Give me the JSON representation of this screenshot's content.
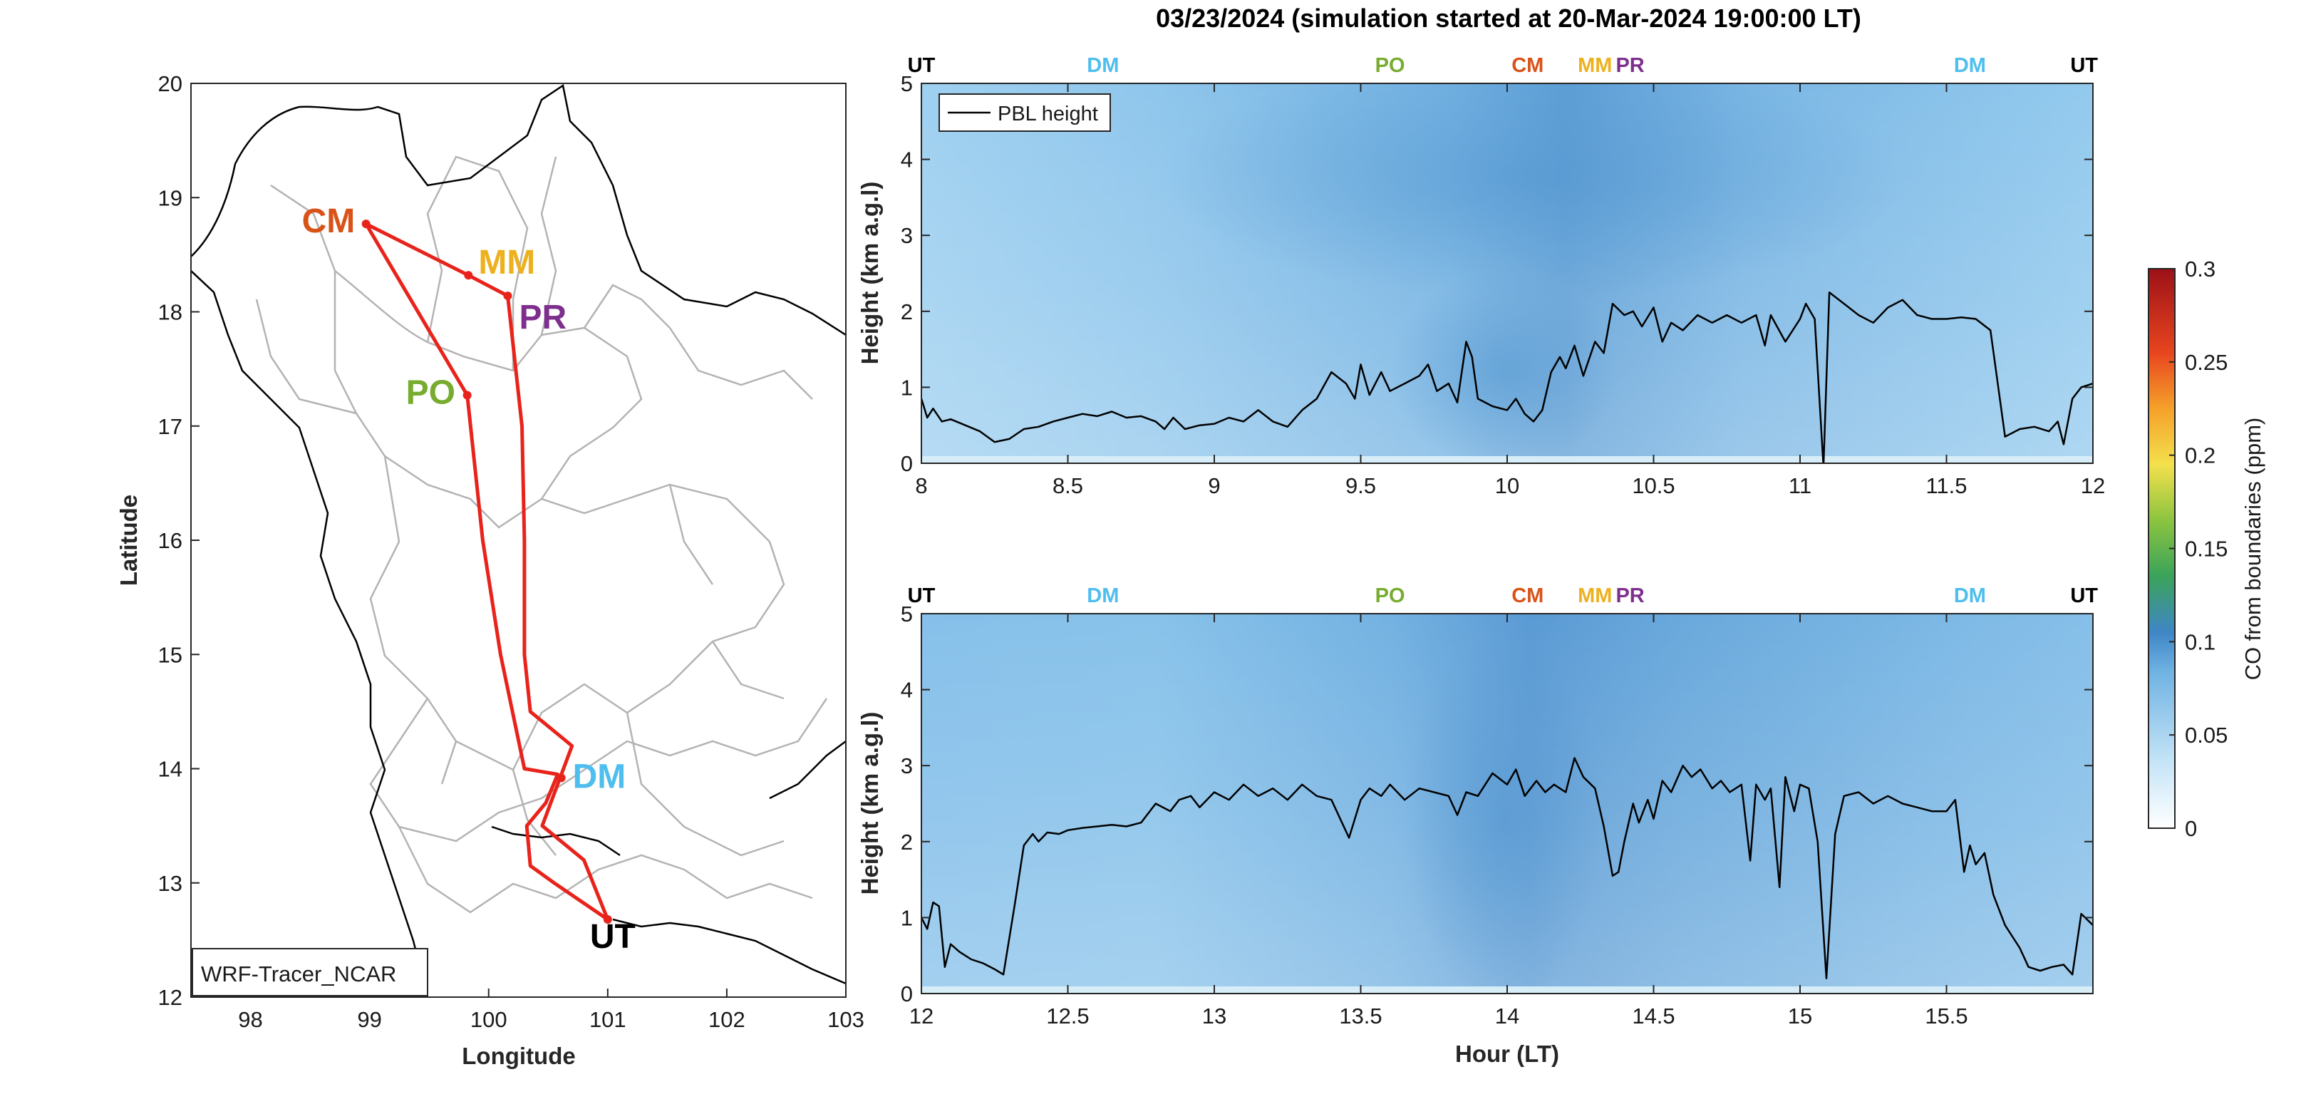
{
  "title": "03/23/2024 (simulation started at 20-Mar-2024 19:00:00 LT)",
  "colors": {
    "track": "#e8231b",
    "pbl": "#000000",
    "CM": "#d95319",
    "MM": "#edb120",
    "PR": "#7e2f8e",
    "PO": "#77ac30",
    "DM": "#4dbeee",
    "UT": "#000000"
  },
  "chart_data": [
    {
      "type": "map",
      "xlabel": "Longitude",
      "ylabel": "Latitude",
      "xlim": [
        97.5,
        103
      ],
      "ylim": [
        12,
        20
      ],
      "xticks": [
        "98",
        "99",
        "100",
        "101",
        "102",
        "103"
      ],
      "yticks": [
        "12",
        "13",
        "14",
        "15",
        "16",
        "17",
        "18",
        "19",
        "20"
      ],
      "label_box": "WRF-Tracer_NCAR",
      "stations": [
        {
          "name": "CM",
          "lon": 98.97,
          "lat": 18.77
        },
        {
          "name": "MM",
          "lon": 99.83,
          "lat": 18.32
        },
        {
          "name": "PR",
          "lon": 100.16,
          "lat": 18.14
        },
        {
          "name": "PO",
          "lon": 99.82,
          "lat": 17.27
        },
        {
          "name": "DM",
          "lon": 100.61,
          "lat": 13.92
        },
        {
          "name": "UT",
          "lon": 101.0,
          "lat": 12.68
        }
      ],
      "track": [
        [
          101.0,
          12.68
        ],
        [
          100.55,
          13.0
        ],
        [
          100.35,
          13.15
        ],
        [
          100.32,
          13.5
        ],
        [
          100.48,
          13.7
        ],
        [
          100.58,
          13.95
        ],
        [
          100.3,
          14.0
        ],
        [
          100.1,
          15.0
        ],
        [
          99.95,
          16.0
        ],
        [
          99.82,
          17.27
        ],
        [
          98.97,
          18.77
        ],
        [
          99.83,
          18.32
        ],
        [
          100.16,
          18.14
        ],
        [
          100.28,
          17.0
        ],
        [
          100.3,
          16.0
        ],
        [
          100.3,
          15.0
        ],
        [
          100.35,
          14.5
        ],
        [
          100.7,
          14.2
        ],
        [
          100.45,
          13.5
        ],
        [
          100.8,
          13.2
        ],
        [
          101.0,
          12.68
        ]
      ]
    },
    {
      "type": "heatmap",
      "xlim": [
        8,
        12
      ],
      "ylim": [
        0,
        5
      ],
      "xticks": [
        "8",
        "8.5",
        "9",
        "9.5",
        "10",
        "10.5",
        "11",
        "11.5",
        "12"
      ],
      "yticks": [
        "0",
        "1",
        "2",
        "3",
        "4",
        "5"
      ],
      "xlabel": "",
      "ylabel": "Height (km a.g.l)",
      "legend": {
        "entry": "PBL height",
        "position": "top-left"
      },
      "top_labels": [
        {
          "name": "UT",
          "x": 8.0
        },
        {
          "name": "DM",
          "x": 8.62
        },
        {
          "name": "PO",
          "x": 9.6
        },
        {
          "name": "CM",
          "x": 10.07
        },
        {
          "name": "MM",
          "x": 10.3
        },
        {
          "name": "PR",
          "x": 10.42
        },
        {
          "name": "DM",
          "x": 11.58
        },
        {
          "name": "UT",
          "x": 11.97
        }
      ],
      "series": [
        {
          "name": "PBL height",
          "points": [
            [
              8.0,
              0.85
            ],
            [
              8.02,
              0.6
            ],
            [
              8.04,
              0.72
            ],
            [
              8.07,
              0.55
            ],
            [
              8.1,
              0.58
            ],
            [
              8.15,
              0.5
            ],
            [
              8.2,
              0.42
            ],
            [
              8.25,
              0.28
            ],
            [
              8.3,
              0.32
            ],
            [
              8.35,
              0.45
            ],
            [
              8.4,
              0.48
            ],
            [
              8.45,
              0.55
            ],
            [
              8.5,
              0.6
            ],
            [
              8.55,
              0.65
            ],
            [
              8.6,
              0.62
            ],
            [
              8.65,
              0.68
            ],
            [
              8.7,
              0.6
            ],
            [
              8.75,
              0.62
            ],
            [
              8.8,
              0.55
            ],
            [
              8.83,
              0.45
            ],
            [
              8.86,
              0.6
            ],
            [
              8.9,
              0.45
            ],
            [
              8.95,
              0.5
            ],
            [
              9.0,
              0.52
            ],
            [
              9.05,
              0.6
            ],
            [
              9.1,
              0.55
            ],
            [
              9.15,
              0.7
            ],
            [
              9.2,
              0.55
            ],
            [
              9.25,
              0.48
            ],
            [
              9.3,
              0.7
            ],
            [
              9.35,
              0.85
            ],
            [
              9.4,
              1.2
            ],
            [
              9.45,
              1.05
            ],
            [
              9.48,
              0.85
            ],
            [
              9.5,
              1.3
            ],
            [
              9.53,
              0.9
            ],
            [
              9.57,
              1.2
            ],
            [
              9.6,
              0.95
            ],
            [
              9.65,
              1.05
            ],
            [
              9.7,
              1.15
            ],
            [
              9.73,
              1.3
            ],
            [
              9.76,
              0.95
            ],
            [
              9.8,
              1.05
            ],
            [
              9.83,
              0.8
            ],
            [
              9.86,
              1.6
            ],
            [
              9.88,
              1.4
            ],
            [
              9.9,
              0.85
            ],
            [
              9.95,
              0.75
            ],
            [
              10.0,
              0.7
            ],
            [
              10.03,
              0.85
            ],
            [
              10.06,
              0.65
            ],
            [
              10.09,
              0.55
            ],
            [
              10.12,
              0.7
            ],
            [
              10.15,
              1.2
            ],
            [
              10.18,
              1.4
            ],
            [
              10.2,
              1.25
            ],
            [
              10.23,
              1.55
            ],
            [
              10.26,
              1.15
            ],
            [
              10.3,
              1.6
            ],
            [
              10.33,
              1.45
            ],
            [
              10.36,
              2.1
            ],
            [
              10.4,
              1.95
            ],
            [
              10.43,
              2.0
            ],
            [
              10.46,
              1.8
            ],
            [
              10.5,
              2.05
            ],
            [
              10.53,
              1.6
            ],
            [
              10.56,
              1.85
            ],
            [
              10.6,
              1.75
            ],
            [
              10.65,
              1.95
            ],
            [
              10.7,
              1.85
            ],
            [
              10.75,
              1.95
            ],
            [
              10.8,
              1.85
            ],
            [
              10.85,
              1.95
            ],
            [
              10.88,
              1.55
            ],
            [
              10.9,
              1.95
            ],
            [
              10.95,
              1.6
            ],
            [
              11.0,
              1.9
            ],
            [
              11.02,
              2.1
            ],
            [
              11.05,
              1.9
            ],
            [
              11.08,
              -0.05
            ],
            [
              11.1,
              2.25
            ],
            [
              11.15,
              2.1
            ],
            [
              11.2,
              1.95
            ],
            [
              11.25,
              1.85
            ],
            [
              11.3,
              2.05
            ],
            [
              11.35,
              2.15
            ],
            [
              11.4,
              1.95
            ],
            [
              11.45,
              1.9
            ],
            [
              11.5,
              1.9
            ],
            [
              11.55,
              1.92
            ],
            [
              11.6,
              1.9
            ],
            [
              11.65,
              1.75
            ],
            [
              11.7,
              0.35
            ],
            [
              11.75,
              0.45
            ],
            [
              11.8,
              0.48
            ],
            [
              11.85,
              0.42
            ],
            [
              11.88,
              0.55
            ],
            [
              11.9,
              0.25
            ],
            [
              11.93,
              0.85
            ],
            [
              11.96,
              1.0
            ],
            [
              12.0,
              1.05
            ]
          ]
        }
      ]
    },
    {
      "type": "heatmap",
      "xlim": [
        12,
        16
      ],
      "ylim": [
        0,
        5
      ],
      "xticks": [
        "12",
        "12.5",
        "13",
        "13.5",
        "14",
        "14.5",
        "15",
        "15.5"
      ],
      "yticks": [
        "0",
        "1",
        "2",
        "3",
        "4",
        "5"
      ],
      "xlabel": "Hour (LT)",
      "ylabel": "Height (km a.g.l)",
      "top_labels": [
        {
          "name": "UT",
          "x": 12.0
        },
        {
          "name": "DM",
          "x": 12.62
        },
        {
          "name": "PO",
          "x": 13.6
        },
        {
          "name": "CM",
          "x": 14.07
        },
        {
          "name": "MM",
          "x": 14.3
        },
        {
          "name": "PR",
          "x": 14.42
        },
        {
          "name": "DM",
          "x": 15.58
        },
        {
          "name": "UT",
          "x": 15.97
        }
      ],
      "series": [
        {
          "name": "PBL height",
          "points": [
            [
              12.0,
              1.0
            ],
            [
              12.02,
              0.85
            ],
            [
              12.04,
              1.2
            ],
            [
              12.06,
              1.15
            ],
            [
              12.08,
              0.35
            ],
            [
              12.1,
              0.65
            ],
            [
              12.13,
              0.55
            ],
            [
              12.17,
              0.45
            ],
            [
              12.21,
              0.4
            ],
            [
              12.25,
              0.32
            ],
            [
              12.28,
              0.25
            ],
            [
              12.32,
              1.2
            ],
            [
              12.35,
              1.95
            ],
            [
              12.38,
              2.1
            ],
            [
              12.4,
              2.0
            ],
            [
              12.43,
              2.12
            ],
            [
              12.47,
              2.1
            ],
            [
              12.5,
              2.15
            ],
            [
              12.55,
              2.18
            ],
            [
              12.6,
              2.2
            ],
            [
              12.65,
              2.22
            ],
            [
              12.7,
              2.2
            ],
            [
              12.75,
              2.25
            ],
            [
              12.8,
              2.5
            ],
            [
              12.85,
              2.4
            ],
            [
              12.88,
              2.55
            ],
            [
              12.92,
              2.6
            ],
            [
              12.95,
              2.45
            ],
            [
              13.0,
              2.65
            ],
            [
              13.05,
              2.55
            ],
            [
              13.1,
              2.75
            ],
            [
              13.15,
              2.6
            ],
            [
              13.2,
              2.7
            ],
            [
              13.25,
              2.55
            ],
            [
              13.3,
              2.75
            ],
            [
              13.35,
              2.6
            ],
            [
              13.4,
              2.55
            ],
            [
              13.43,
              2.3
            ],
            [
              13.46,
              2.05
            ],
            [
              13.5,
              2.55
            ],
            [
              13.53,
              2.7
            ],
            [
              13.57,
              2.6
            ],
            [
              13.6,
              2.75
            ],
            [
              13.65,
              2.55
            ],
            [
              13.7,
              2.7
            ],
            [
              13.75,
              2.65
            ],
            [
              13.8,
              2.6
            ],
            [
              13.83,
              2.35
            ],
            [
              13.86,
              2.65
            ],
            [
              13.9,
              2.6
            ],
            [
              13.95,
              2.9
            ],
            [
              14.0,
              2.75
            ],
            [
              14.03,
              2.95
            ],
            [
              14.06,
              2.6
            ],
            [
              14.1,
              2.8
            ],
            [
              14.13,
              2.65
            ],
            [
              14.16,
              2.75
            ],
            [
              14.2,
              2.65
            ],
            [
              14.23,
              3.1
            ],
            [
              14.26,
              2.85
            ],
            [
              14.3,
              2.7
            ],
            [
              14.33,
              2.2
            ],
            [
              14.36,
              1.55
            ],
            [
              14.38,
              1.6
            ],
            [
              14.4,
              2.0
            ],
            [
              14.43,
              2.5
            ],
            [
              14.45,
              2.25
            ],
            [
              14.48,
              2.55
            ],
            [
              14.5,
              2.3
            ],
            [
              14.53,
              2.8
            ],
            [
              14.56,
              2.65
            ],
            [
              14.6,
              3.0
            ],
            [
              14.63,
              2.85
            ],
            [
              14.66,
              2.95
            ],
            [
              14.7,
              2.7
            ],
            [
              14.73,
              2.8
            ],
            [
              14.76,
              2.65
            ],
            [
              14.8,
              2.75
            ],
            [
              14.83,
              1.75
            ],
            [
              14.85,
              2.75
            ],
            [
              14.88,
              2.55
            ],
            [
              14.9,
              2.7
            ],
            [
              14.93,
              1.4
            ],
            [
              14.95,
              2.85
            ],
            [
              14.98,
              2.4
            ],
            [
              15.0,
              2.75
            ],
            [
              15.03,
              2.7
            ],
            [
              15.06,
              2.0
            ],
            [
              15.09,
              0.2
            ],
            [
              15.12,
              2.1
            ],
            [
              15.15,
              2.6
            ],
            [
              15.2,
              2.65
            ],
            [
              15.25,
              2.5
            ],
            [
              15.3,
              2.6
            ],
            [
              15.35,
              2.5
            ],
            [
              15.4,
              2.45
            ],
            [
              15.45,
              2.4
            ],
            [
              15.5,
              2.4
            ],
            [
              15.53,
              2.55
            ],
            [
              15.56,
              1.6
            ],
            [
              15.58,
              1.95
            ],
            [
              15.6,
              1.7
            ],
            [
              15.63,
              1.85
            ],
            [
              15.66,
              1.3
            ],
            [
              15.7,
              0.9
            ],
            [
              15.75,
              0.6
            ],
            [
              15.78,
              0.35
            ],
            [
              15.82,
              0.3
            ],
            [
              15.86,
              0.35
            ],
            [
              15.9,
              0.38
            ],
            [
              15.93,
              0.25
            ],
            [
              15.96,
              1.05
            ],
            [
              16.0,
              0.9
            ]
          ]
        }
      ]
    }
  ],
  "colorbar": {
    "label": "CO from boundaries (ppm)",
    "ticks": [
      "0",
      "0.05",
      "0.1",
      "0.15",
      "0.2",
      "0.25",
      "0.3"
    ],
    "range": [
      0,
      0.3
    ]
  }
}
